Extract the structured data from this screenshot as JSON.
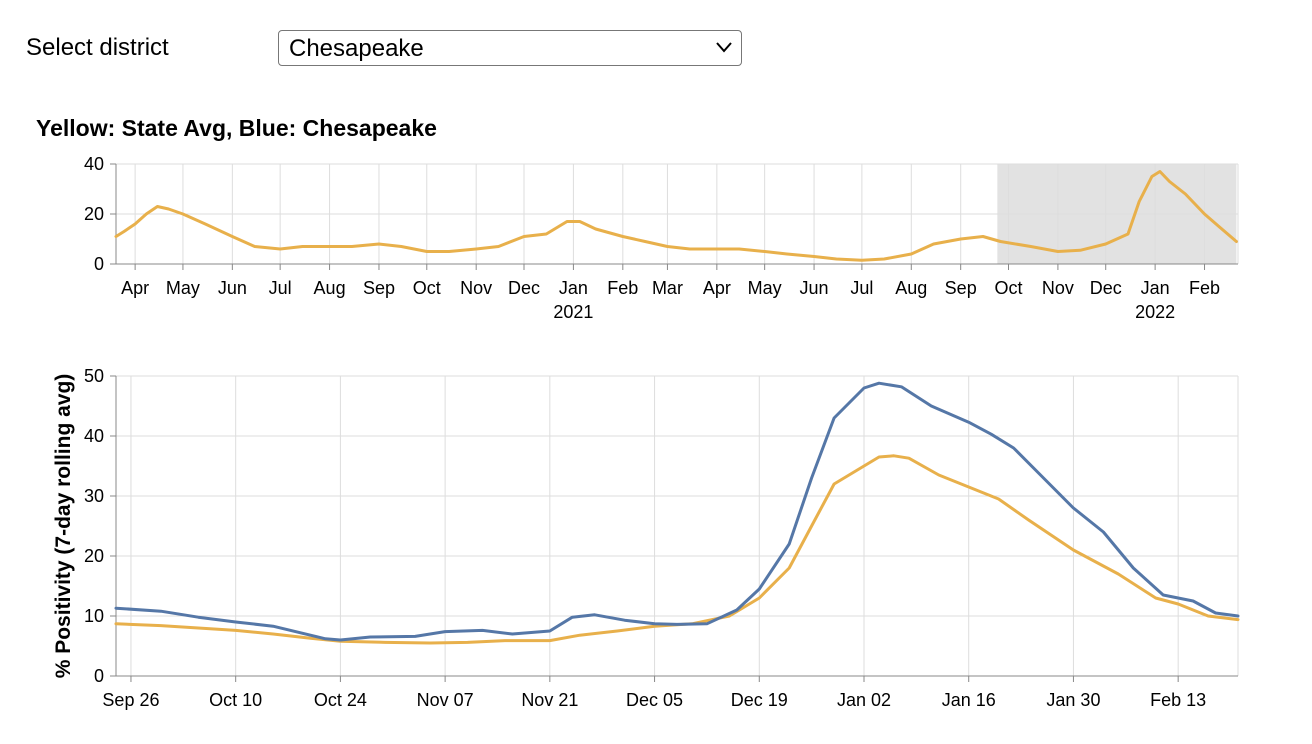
{
  "selector": {
    "label": "Select district",
    "selected": "Chesapeake",
    "chevron_icon": "chevron-down-icon"
  },
  "colors": {
    "state": "#E8B04B",
    "district": "#5577A7",
    "brush": "#E2E2E2",
    "grid": "#DDDDDD",
    "axis": "#888888"
  },
  "chart_data": [
    {
      "type": "line",
      "title": "Yellow: State Avg, Blue: Chesapeake",
      "x_range": [
        "2020-03-20",
        "2022-02-22"
      ],
      "ylim": [
        0,
        40
      ],
      "y_ticks": [
        0,
        20,
        40
      ],
      "x_ticks": [
        {
          "date": "2020-04-01",
          "label": "Apr"
        },
        {
          "date": "2020-05-01",
          "label": "May"
        },
        {
          "date": "2020-06-01",
          "label": "Jun"
        },
        {
          "date": "2020-07-01",
          "label": "Jul"
        },
        {
          "date": "2020-08-01",
          "label": "Aug"
        },
        {
          "date": "2020-09-01",
          "label": "Sep"
        },
        {
          "date": "2020-10-01",
          "label": "Oct"
        },
        {
          "date": "2020-11-01",
          "label": "Nov"
        },
        {
          "date": "2020-12-01",
          "label": "Dec"
        },
        {
          "date": "2021-01-01",
          "label": "Jan",
          "year": "2021"
        },
        {
          "date": "2021-02-01",
          "label": "Feb"
        },
        {
          "date": "2021-03-01",
          "label": "Mar"
        },
        {
          "date": "2021-04-01",
          "label": "Apr"
        },
        {
          "date": "2021-05-01",
          "label": "May"
        },
        {
          "date": "2021-06-01",
          "label": "Jun"
        },
        {
          "date": "2021-07-01",
          "label": "Jul"
        },
        {
          "date": "2021-08-01",
          "label": "Aug"
        },
        {
          "date": "2021-09-01",
          "label": "Sep"
        },
        {
          "date": "2021-10-01",
          "label": "Oct"
        },
        {
          "date": "2021-11-01",
          "label": "Nov"
        },
        {
          "date": "2021-12-01",
          "label": "Dec"
        },
        {
          "date": "2022-01-01",
          "label": "Jan",
          "year": "2022"
        },
        {
          "date": "2022-02-01",
          "label": "Feb"
        }
      ],
      "brush_selection": [
        "2021-09-24",
        "2022-02-21"
      ],
      "grid": true,
      "series": [
        {
          "color": "state",
          "points": [
            [
              "2020-03-20",
              11
            ],
            [
              "2020-03-25",
              13
            ],
            [
              "2020-04-01",
              16
            ],
            [
              "2020-04-08",
              20
            ],
            [
              "2020-04-15",
              23
            ],
            [
              "2020-04-22",
              22
            ],
            [
              "2020-05-01",
              20
            ],
            [
              "2020-05-15",
              16
            ],
            [
              "2020-06-01",
              11
            ],
            [
              "2020-06-15",
              7
            ],
            [
              "2020-07-01",
              6
            ],
            [
              "2020-07-15",
              7
            ],
            [
              "2020-08-01",
              7
            ],
            [
              "2020-08-15",
              7
            ],
            [
              "2020-09-01",
              8
            ],
            [
              "2020-09-15",
              7
            ],
            [
              "2020-10-01",
              5
            ],
            [
              "2020-10-15",
              5
            ],
            [
              "2020-11-01",
              6
            ],
            [
              "2020-11-15",
              7
            ],
            [
              "2020-12-01",
              11
            ],
            [
              "2020-12-15",
              12
            ],
            [
              "2020-12-28",
              17
            ],
            [
              "2021-01-05",
              17
            ],
            [
              "2021-01-15",
              14
            ],
            [
              "2021-02-01",
              11
            ],
            [
              "2021-02-15",
              9
            ],
            [
              "2021-03-01",
              7
            ],
            [
              "2021-03-15",
              6
            ],
            [
              "2021-04-01",
              6
            ],
            [
              "2021-04-15",
              6
            ],
            [
              "2021-05-01",
              5
            ],
            [
              "2021-05-15",
              4
            ],
            [
              "2021-06-01",
              3
            ],
            [
              "2021-06-15",
              2
            ],
            [
              "2021-07-01",
              1.5
            ],
            [
              "2021-07-15",
              2
            ],
            [
              "2021-08-01",
              4
            ],
            [
              "2021-08-15",
              8
            ],
            [
              "2021-09-01",
              10
            ],
            [
              "2021-09-15",
              11
            ],
            [
              "2021-09-26",
              9
            ],
            [
              "2021-10-15",
              7
            ],
            [
              "2021-11-01",
              5
            ],
            [
              "2021-11-15",
              5.5
            ],
            [
              "2021-12-01",
              8
            ],
            [
              "2021-12-15",
              12
            ],
            [
              "2021-12-22",
              25
            ],
            [
              "2021-12-30",
              35
            ],
            [
              "2022-01-04",
              37
            ],
            [
              "2022-01-10",
              33
            ],
            [
              "2022-01-20",
              28
            ],
            [
              "2022-02-01",
              20
            ],
            [
              "2022-02-10",
              15
            ],
            [
              "2022-02-21",
              9
            ]
          ]
        }
      ]
    },
    {
      "type": "line",
      "ylabel": "% Positivity (7-day rolling avg)",
      "x_range": [
        "2021-09-24",
        "2022-02-21"
      ],
      "ylim": [
        0,
        50
      ],
      "y_ticks": [
        0,
        10,
        20,
        30,
        40,
        50
      ],
      "x_ticks": [
        {
          "date": "2021-09-26",
          "label": "Sep 26"
        },
        {
          "date": "2021-10-10",
          "label": "Oct 10"
        },
        {
          "date": "2021-10-24",
          "label": "Oct 24"
        },
        {
          "date": "2021-11-07",
          "label": "Nov 07"
        },
        {
          "date": "2021-11-21",
          "label": "Nov 21"
        },
        {
          "date": "2021-12-05",
          "label": "Dec 05"
        },
        {
          "date": "2021-12-19",
          "label": "Dec 19"
        },
        {
          "date": "2022-01-02",
          "label": "Jan 02"
        },
        {
          "date": "2022-01-16",
          "label": "Jan 16"
        },
        {
          "date": "2022-01-30",
          "label": "Jan 30"
        },
        {
          "date": "2022-02-13",
          "label": "Feb 13"
        }
      ],
      "grid": true,
      "series": [
        {
          "color": "state",
          "points": [
            [
              "2021-09-24",
              8.7
            ],
            [
              "2021-09-30",
              8.4
            ],
            [
              "2021-10-05",
              8.0
            ],
            [
              "2021-10-10",
              7.6
            ],
            [
              "2021-10-15",
              7.0
            ],
            [
              "2021-10-20",
              6.3
            ],
            [
              "2021-10-24",
              5.8
            ],
            [
              "2021-10-30",
              5.6
            ],
            [
              "2021-11-05",
              5.5
            ],
            [
              "2021-11-10",
              5.6
            ],
            [
              "2021-11-15",
              5.9
            ],
            [
              "2021-11-21",
              5.9
            ],
            [
              "2021-11-25",
              6.8
            ],
            [
              "2021-11-30",
              7.5
            ],
            [
              "2021-12-05",
              8.3
            ],
            [
              "2021-12-10",
              8.7
            ],
            [
              "2021-12-15",
              10.0
            ],
            [
              "2021-12-19",
              13.0
            ],
            [
              "2021-12-23",
              18.0
            ],
            [
              "2021-12-26",
              25.0
            ],
            [
              "2021-12-29",
              32.0
            ],
            [
              "2022-01-02",
              35.0
            ],
            [
              "2022-01-04",
              36.5
            ],
            [
              "2022-01-06",
              36.7
            ],
            [
              "2022-01-08",
              36.3
            ],
            [
              "2022-01-12",
              33.5
            ],
            [
              "2022-01-16",
              31.5
            ],
            [
              "2022-01-20",
              29.5
            ],
            [
              "2022-01-24",
              26.0
            ],
            [
              "2022-01-30",
              21.0
            ],
            [
              "2022-02-05",
              17.0
            ],
            [
              "2022-02-10",
              13.0
            ],
            [
              "2022-02-13",
              12.0
            ],
            [
              "2022-02-17",
              10.0
            ],
            [
              "2022-02-21",
              9.4
            ]
          ]
        },
        {
          "color": "district",
          "points": [
            [
              "2021-09-24",
              11.3
            ],
            [
              "2021-09-30",
              10.8
            ],
            [
              "2021-10-05",
              9.8
            ],
            [
              "2021-10-10",
              9.0
            ],
            [
              "2021-10-15",
              8.3
            ],
            [
              "2021-10-20",
              6.8
            ],
            [
              "2021-10-22",
              6.2
            ],
            [
              "2021-10-24",
              6.0
            ],
            [
              "2021-10-28",
              6.5
            ],
            [
              "2021-11-03",
              6.6
            ],
            [
              "2021-11-07",
              7.4
            ],
            [
              "2021-11-12",
              7.6
            ],
            [
              "2021-11-16",
              7.0
            ],
            [
              "2021-11-21",
              7.5
            ],
            [
              "2021-11-24",
              9.8
            ],
            [
              "2021-11-27",
              10.2
            ],
            [
              "2021-12-01",
              9.3
            ],
            [
              "2021-12-05",
              8.7
            ],
            [
              "2021-12-08",
              8.6
            ],
            [
              "2021-12-12",
              8.7
            ],
            [
              "2021-12-16",
              11.0
            ],
            [
              "2021-12-19",
              14.5
            ],
            [
              "2021-12-23",
              22.0
            ],
            [
              "2021-12-26",
              33.0
            ],
            [
              "2021-12-29",
              43.0
            ],
            [
              "2022-01-02",
              48.0
            ],
            [
              "2022-01-04",
              48.8
            ],
            [
              "2022-01-07",
              48.2
            ],
            [
              "2022-01-11",
              45.0
            ],
            [
              "2022-01-16",
              42.3
            ],
            [
              "2022-01-19",
              40.3
            ],
            [
              "2022-01-22",
              38.0
            ],
            [
              "2022-01-26",
              33.0
            ],
            [
              "2022-01-30",
              28.0
            ],
            [
              "2022-02-03",
              24.0
            ],
            [
              "2022-02-07",
              18.0
            ],
            [
              "2022-02-11",
              13.5
            ],
            [
              "2022-02-15",
              12.5
            ],
            [
              "2022-02-18",
              10.5
            ],
            [
              "2022-02-21",
              10.0
            ]
          ]
        }
      ]
    }
  ]
}
